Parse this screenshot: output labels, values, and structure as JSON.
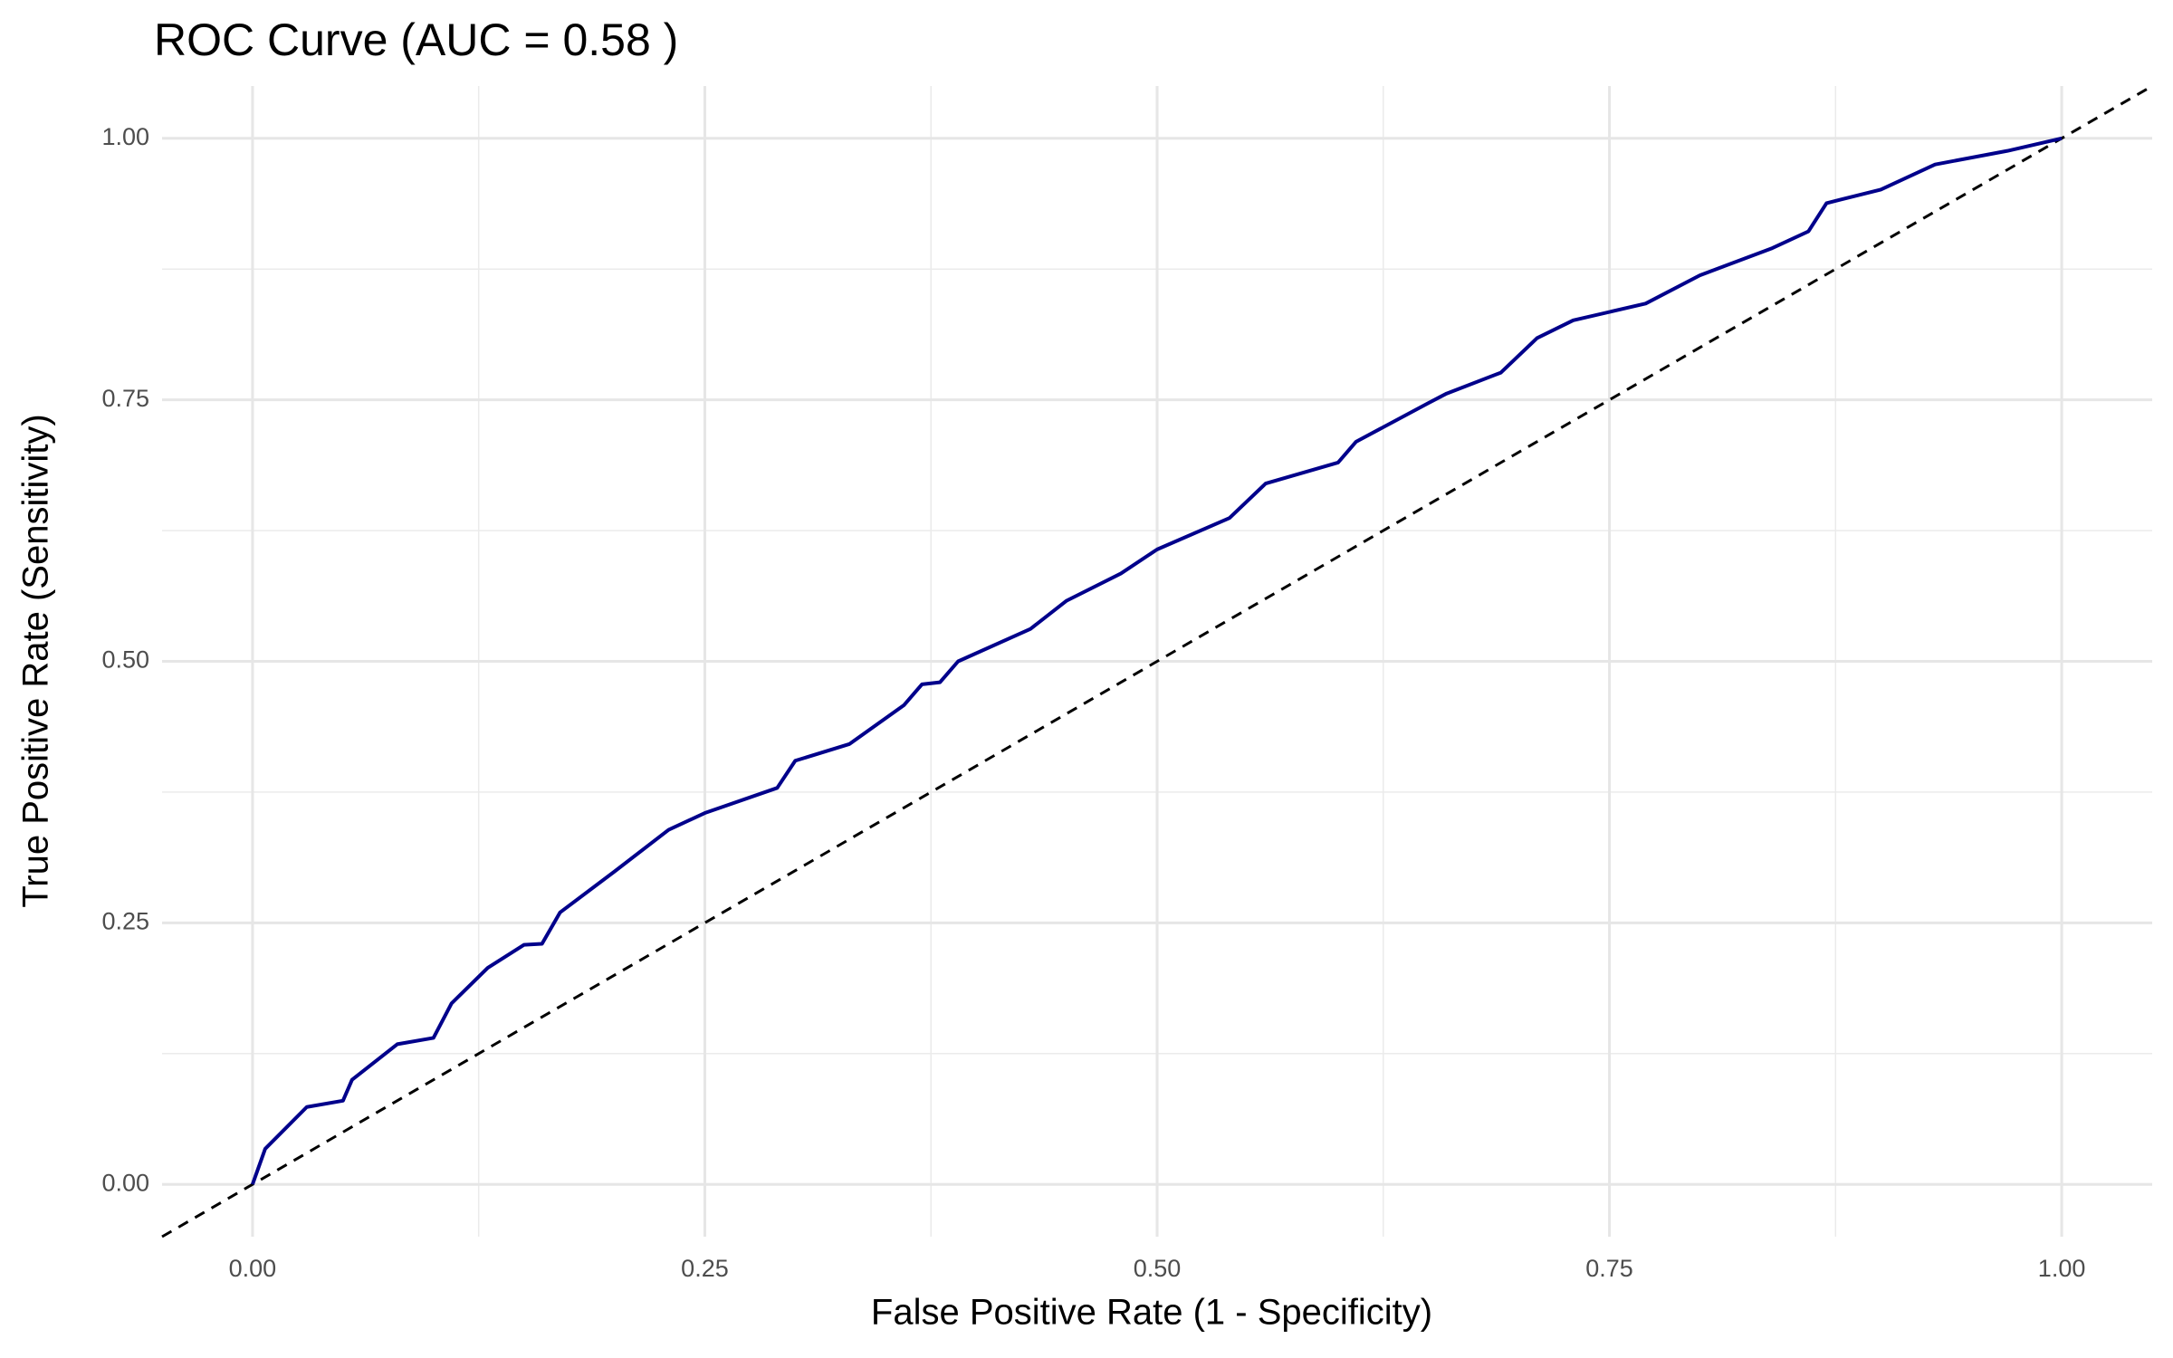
{
  "chart_data": {
    "type": "line",
    "title": "ROC Curve (AUC = 0.58 )",
    "x_label": "False Positive Rate (1 - Specificity)",
    "y_label": "True Positive Rate (Sensitivity)",
    "x": [
      0,
      0.007,
      0.03,
      0.05,
      0.055,
      0.08,
      0.1,
      0.11,
      0.13,
      0.15,
      0.16,
      0.17,
      0.2,
      0.23,
      0.25,
      0.29,
      0.3,
      0.33,
      0.36,
      0.37,
      0.38,
      0.39,
      0.43,
      0.45,
      0.48,
      0.5,
      0.54,
      0.56,
      0.6,
      0.61,
      0.65,
      0.66,
      0.69,
      0.71,
      0.73,
      0.77,
      0.8,
      0.84,
      0.86,
      0.87,
      0.9,
      0.93,
      0.97,
      1
    ],
    "series": [
      {
        "name": "ROC",
        "color": "#00008b",
        "values": [
          0,
          0.034,
          0.074,
          0.08,
          0.1,
          0.134,
          0.14,
          0.173,
          0.207,
          0.229,
          0.23,
          0.26,
          0.299,
          0.339,
          0.355,
          0.379,
          0.405,
          0.421,
          0.458,
          0.478,
          0.48,
          0.5,
          0.531,
          0.558,
          0.584,
          0.607,
          0.637,
          0.67,
          0.69,
          0.71,
          0.747,
          0.756,
          0.776,
          0.809,
          0.826,
          0.842,
          0.869,
          0.895,
          0.911,
          0.938,
          0.951,
          0.975,
          0.988,
          1
        ]
      }
    ],
    "reference_line": {
      "slope": 1,
      "intercept": 0,
      "color": "#000000",
      "dashed": true
    },
    "xlim": [
      -0.05,
      1.05
    ],
    "ylim": [
      -0.05,
      1.05
    ],
    "xticks": [
      {
        "value": 0,
        "label": "0.00"
      },
      {
        "value": 0.25,
        "label": "0.25"
      },
      {
        "value": 0.5,
        "label": "0.50"
      },
      {
        "value": 0.75,
        "label": "0.75"
      },
      {
        "value": 1,
        "label": "1.00"
      }
    ],
    "yticks": [
      {
        "value": 0,
        "label": "0.00"
      },
      {
        "value": 0.25,
        "label": "0.25"
      },
      {
        "value": 0.5,
        "label": "0.50"
      },
      {
        "value": 0.75,
        "label": "0.75"
      },
      {
        "value": 1,
        "label": "1.00"
      }
    ],
    "minor_xticks": [
      0.125,
      0.375,
      0.625,
      0.875
    ],
    "minor_yticks": [
      0.125,
      0.375,
      0.625,
      0.875
    ],
    "grid": true
  }
}
